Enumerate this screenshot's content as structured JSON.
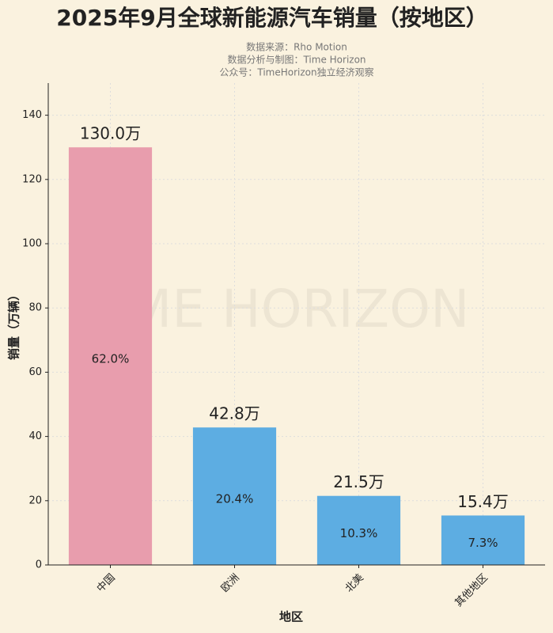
{
  "chart_data": {
    "type": "bar",
    "title": "2025年9月全球新能源汽车销量（按地区）",
    "subtitle_lines": [
      "数据来源：Rho Motion",
      "数据分析与制图：Time Horizon",
      "公众号：TimeHorizon独立经济观察"
    ],
    "watermark": "TIME HORIZON",
    "xlabel": "地区",
    "ylabel": "销量（万辆）",
    "categories": [
      "中国",
      "欧洲",
      "北美",
      "其他地区"
    ],
    "values": [
      130.0,
      42.8,
      21.5,
      15.4
    ],
    "value_labels": [
      "130.0万",
      "42.8万",
      "21.5万",
      "15.4万"
    ],
    "inner_labels": [
      "62.0%",
      "20.4%",
      "10.3%",
      "7.3%"
    ],
    "colors": [
      "#e89dad",
      "#5dade2",
      "#5dade2",
      "#5dade2"
    ],
    "ylim": [
      0,
      150
    ],
    "yticks": [
      0,
      20,
      40,
      60,
      80,
      100,
      120,
      140
    ],
    "grid": true
  }
}
